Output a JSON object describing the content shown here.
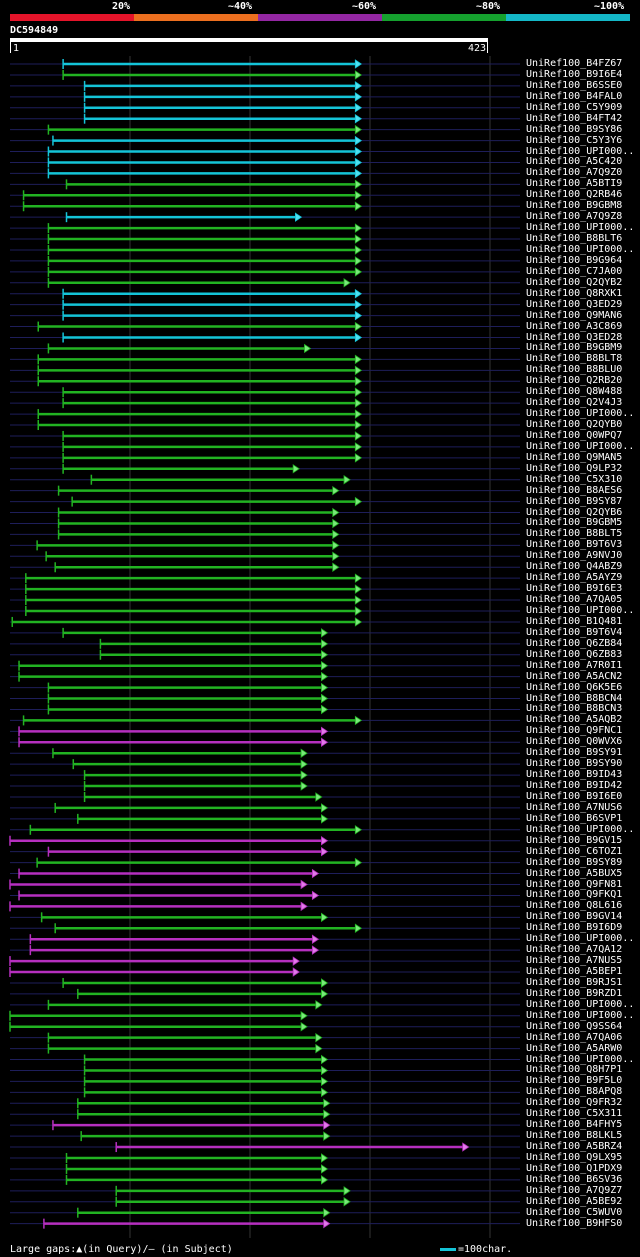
{
  "legend": {
    "labels": [
      "20%",
      "~40%",
      "~60%",
      "~80%",
      "~100%"
    ],
    "colors": [
      "#e5142a",
      "#ec6f1f",
      "#9427a3",
      "#15a12e",
      "#14b7c7"
    ]
  },
  "query": {
    "id": "DC594849",
    "start": "1",
    "end": "423",
    "length": 423
  },
  "colors": {
    "cyan": "#14c4d8",
    "green": "#22b322",
    "magenta": "#b62fbf",
    "cyan_arrow": "#4fe0f0",
    "green_arrow": "#7ae87a",
    "magenta_arrow": "#e07ae8",
    "row_line": "#1e1e5a",
    "grid": "#333333"
  },
  "hits": [
    {
      "label": "UniRef100_B4FZ67",
      "segments": [
        [
          47,
          310,
          "cyan"
        ]
      ]
    },
    {
      "label": "UniRef100_B9I6E4",
      "segments": [
        [
          47,
          310,
          "green"
        ]
      ]
    },
    {
      "label": "UniRef100_B6SSE0",
      "segments": [
        [
          66,
          310,
          "cyan"
        ]
      ]
    },
    {
      "label": "UniRef100_B4FAL0",
      "segments": [
        [
          66,
          310,
          "cyan"
        ]
      ]
    },
    {
      "label": "UniRef100_C5Y909",
      "segments": [
        [
          66,
          310,
          "cyan"
        ]
      ]
    },
    {
      "label": "UniRef100_B4FT42",
      "segments": [
        [
          66,
          310,
          "cyan"
        ]
      ]
    },
    {
      "label": "UniRef100_B9SY86",
      "segments": [
        [
          34,
          310,
          "green"
        ]
      ]
    },
    {
      "label": "UniRef100_C5Y3Y6",
      "segments": [
        [
          38,
          310,
          "cyan"
        ]
      ]
    },
    {
      "label": "UniRef100_UPI000..",
      "segments": [
        [
          34,
          310,
          "cyan"
        ]
      ]
    },
    {
      "label": "UniRef100_A5C420",
      "segments": [
        [
          34,
          310,
          "cyan"
        ]
      ]
    },
    {
      "label": "UniRef100_A7Q9Z0",
      "segments": [
        [
          34,
          310,
          "cyan"
        ]
      ]
    },
    {
      "label": "UniRef100_A5BTI9",
      "segments": [
        [
          50,
          310,
          "green"
        ]
      ]
    },
    {
      "label": "UniRef100_Q2RB46",
      "segments": [
        [
          12,
          310,
          "green"
        ]
      ]
    },
    {
      "label": "UniRef100_B9GBM8",
      "segments": [
        [
          12,
          310,
          "green"
        ]
      ]
    },
    {
      "label": "UniRef100_A7Q9Z8",
      "segments": [
        [
          50,
          257,
          "cyan"
        ]
      ]
    },
    {
      "label": "UniRef100_UPI000..",
      "segments": [
        [
          34,
          310,
          "green"
        ]
      ]
    },
    {
      "label": "UniRef100_B8BLT6",
      "segments": [
        [
          34,
          310,
          "green"
        ]
      ]
    },
    {
      "label": "UniRef100_UPI000..",
      "segments": [
        [
          34,
          310,
          "green"
        ]
      ]
    },
    {
      "label": "UniRef100_B9G964",
      "segments": [
        [
          34,
          310,
          "green"
        ]
      ]
    },
    {
      "label": "UniRef100_C7JA00",
      "segments": [
        [
          34,
          310,
          "green"
        ]
      ]
    },
    {
      "label": "UniRef100_Q2QYB2",
      "segments": [
        [
          34,
          300,
          "green"
        ]
      ]
    },
    {
      "label": "UniRef100_Q8RXK1",
      "segments": [
        [
          47,
          310,
          "cyan"
        ]
      ]
    },
    {
      "label": "UniRef100_Q3ED29",
      "segments": [
        [
          47,
          310,
          "cyan"
        ]
      ]
    },
    {
      "label": "UniRef100_Q9MAN6",
      "segments": [
        [
          47,
          310,
          "cyan"
        ]
      ]
    },
    {
      "label": "UniRef100_A3C869",
      "segments": [
        [
          25,
          310,
          "green"
        ]
      ]
    },
    {
      "label": "UniRef100_Q3ED28",
      "segments": [
        [
          47,
          310,
          "cyan"
        ]
      ]
    },
    {
      "label": "UniRef100_B9GBM9",
      "segments": [
        [
          34,
          265,
          "green"
        ]
      ]
    },
    {
      "label": "UniRef100_B8BLT8",
      "segments": [
        [
          25,
          310,
          "green"
        ]
      ]
    },
    {
      "label": "UniRef100_B8BLU0",
      "segments": [
        [
          25,
          310,
          "green"
        ]
      ]
    },
    {
      "label": "UniRef100_Q2RB20",
      "segments": [
        [
          25,
          310,
          "green"
        ]
      ]
    },
    {
      "label": "UniRef100_Q8W488",
      "segments": [
        [
          47,
          310,
          "green"
        ]
      ]
    },
    {
      "label": "UniRef100_Q2V4J3",
      "segments": [
        [
          47,
          310,
          "green"
        ]
      ]
    },
    {
      "label": "UniRef100_UPI000..",
      "segments": [
        [
          25,
          310,
          "green"
        ]
      ]
    },
    {
      "label": "UniRef100_Q2QYB0",
      "segments": [
        [
          25,
          310,
          "green"
        ]
      ]
    },
    {
      "label": "UniRef100_Q0WPQ7",
      "segments": [
        [
          47,
          310,
          "green"
        ]
      ]
    },
    {
      "label": "UniRef100_UPI000..",
      "segments": [
        [
          47,
          310,
          "green"
        ]
      ]
    },
    {
      "label": "UniRef100_Q9MAN5",
      "segments": [
        [
          47,
          310,
          "green"
        ]
      ]
    },
    {
      "label": "UniRef100_Q9LP32",
      "segments": [
        [
          47,
          255,
          "green"
        ]
      ]
    },
    {
      "label": "UniRef100_C5X310",
      "segments": [
        [
          72,
          300,
          "green"
        ]
      ]
    },
    {
      "label": "UniRef100_B8AES6",
      "segments": [
        [
          43,
          290,
          "green"
        ]
      ]
    },
    {
      "label": "UniRef100_B9SY87",
      "segments": [
        [
          55,
          310,
          "green"
        ]
      ]
    },
    {
      "label": "UniRef100_Q2QYB6",
      "segments": [
        [
          43,
          290,
          "green"
        ]
      ]
    },
    {
      "label": "UniRef100_B9GBM5",
      "segments": [
        [
          43,
          290,
          "green"
        ]
      ]
    },
    {
      "label": "UniRef100_B8BLT5",
      "segments": [
        [
          43,
          290,
          "green"
        ]
      ]
    },
    {
      "label": "UniRef100_B9T6V3",
      "segments": [
        [
          24,
          290,
          "green"
        ]
      ]
    },
    {
      "label": "UniRef100_A9NVJ0",
      "segments": [
        [
          32,
          290,
          "green"
        ]
      ]
    },
    {
      "label": "UniRef100_Q4ABZ9",
      "segments": [
        [
          40,
          290,
          "green"
        ]
      ]
    },
    {
      "label": "UniRef100_A5AYZ9",
      "segments": [
        [
          14,
          310,
          "green"
        ]
      ]
    },
    {
      "label": "UniRef100_B9I6E3",
      "segments": [
        [
          14,
          310,
          "green"
        ]
      ]
    },
    {
      "label": "UniRef100_A7QA05",
      "segments": [
        [
          14,
          310,
          "green"
        ]
      ]
    },
    {
      "label": "UniRef100_UPI000..",
      "segments": [
        [
          14,
          310,
          "green"
        ]
      ]
    },
    {
      "label": "UniRef100_B1Q481",
      "segments": [
        [
          2,
          310,
          "green"
        ]
      ]
    },
    {
      "label": "UniRef100_B9T6V4",
      "segments": [
        [
          47,
          280,
          "green"
        ]
      ]
    },
    {
      "label": "UniRef100_Q6ZB84",
      "segments": [
        [
          80,
          280,
          "green"
        ]
      ]
    },
    {
      "label": "UniRef100_Q6ZB83",
      "segments": [
        [
          80,
          280,
          "green"
        ]
      ]
    },
    {
      "label": "UniRef100_A7R0I1",
      "segments": [
        [
          8,
          280,
          "green"
        ]
      ]
    },
    {
      "label": "UniRef100_A5ACN2",
      "segments": [
        [
          8,
          280,
          "green"
        ]
      ]
    },
    {
      "label": "UniRef100_Q6K5E6",
      "segments": [
        [
          34,
          280,
          "green"
        ]
      ]
    },
    {
      "label": "UniRef100_B8BCN4",
      "segments": [
        [
          34,
          280,
          "green"
        ]
      ]
    },
    {
      "label": "UniRef100_B8BCN3",
      "segments": [
        [
          34,
          280,
          "green"
        ]
      ]
    },
    {
      "label": "UniRef100_A5AQB2",
      "segments": [
        [
          12,
          310,
          "green"
        ]
      ]
    },
    {
      "label": "UniRef100_Q9FNC1",
      "segments": [
        [
          8,
          280,
          "magenta"
        ]
      ]
    },
    {
      "label": "UniRef100_Q0WVX6",
      "segments": [
        [
          8,
          280,
          "magenta"
        ]
      ]
    },
    {
      "label": "UniRef100_B9SY91",
      "segments": [
        [
          38,
          262,
          "green"
        ]
      ]
    },
    {
      "label": "UniRef100_B9SY90",
      "segments": [
        [
          56,
          262,
          "green"
        ]
      ]
    },
    {
      "label": "UniRef100_B9ID43",
      "segments": [
        [
          66,
          262,
          "green"
        ]
      ]
    },
    {
      "label": "UniRef100_B9ID42",
      "segments": [
        [
          66,
          262,
          "green"
        ]
      ]
    },
    {
      "label": "UniRef100_B9I6E0",
      "segments": [
        [
          66,
          275,
          "green"
        ]
      ]
    },
    {
      "label": "UniRef100_A7NUS6",
      "segments": [
        [
          40,
          280,
          "green"
        ]
      ]
    },
    {
      "label": "UniRef100_B6SVP1",
      "segments": [
        [
          60,
          280,
          "green"
        ]
      ]
    },
    {
      "label": "UniRef100_UPI000..",
      "segments": [
        [
          18,
          310,
          "green"
        ]
      ]
    },
    {
      "label": "UniRef100_B9GV15",
      "segments": [
        [
          0,
          280,
          "magenta"
        ]
      ]
    },
    {
      "label": "UniRef100_C6TOZ1",
      "segments": [
        [
          34,
          280,
          "magenta"
        ]
      ]
    },
    {
      "label": "UniRef100_B9SY89",
      "segments": [
        [
          24,
          310,
          "green"
        ]
      ]
    },
    {
      "label": "UniRef100_A5BUX5",
      "segments": [
        [
          8,
          272,
          "magenta"
        ]
      ]
    },
    {
      "label": "UniRef100_Q9FN81",
      "segments": [
        [
          0,
          262,
          "magenta"
        ]
      ]
    },
    {
      "label": "UniRef100_Q9FKQ1",
      "segments": [
        [
          8,
          272,
          "magenta"
        ]
      ]
    },
    {
      "label": "UniRef100_Q8L616",
      "segments": [
        [
          0,
          262,
          "magenta"
        ]
      ]
    },
    {
      "label": "UniRef100_B9GV14",
      "segments": [
        [
          28,
          280,
          "green"
        ]
      ]
    },
    {
      "label": "UniRef100_B9I6D9",
      "segments": [
        [
          40,
          310,
          "green"
        ]
      ]
    },
    {
      "label": "UniRef100_UPI000..",
      "segments": [
        [
          18,
          272,
          "magenta"
        ]
      ]
    },
    {
      "label": "UniRef100_A7QA12",
      "segments": [
        [
          18,
          272,
          "magenta"
        ]
      ]
    },
    {
      "label": "UniRef100_A7NUS5",
      "segments": [
        [
          0,
          255,
          "magenta"
        ]
      ]
    },
    {
      "label": "UniRef100_A5BEP1",
      "segments": [
        [
          0,
          255,
          "magenta"
        ]
      ]
    },
    {
      "label": "UniRef100_B9RJS1",
      "segments": [
        [
          47,
          280,
          "green"
        ]
      ]
    },
    {
      "label": "UniRef100_B9RZD1",
      "segments": [
        [
          60,
          280,
          "green"
        ]
      ]
    },
    {
      "label": "UniRef100_UPI000..",
      "segments": [
        [
          34,
          275,
          "green"
        ]
      ]
    },
    {
      "label": "UniRef100_UPI000..",
      "segments": [
        [
          0,
          262,
          "green"
        ]
      ]
    },
    {
      "label": "UniRef100_Q9SS64",
      "segments": [
        [
          0,
          262,
          "green"
        ]
      ]
    },
    {
      "label": "UniRef100_A7QA06",
      "segments": [
        [
          34,
          275,
          "green"
        ]
      ]
    },
    {
      "label": "UniRef100_A5ARW0",
      "segments": [
        [
          34,
          275,
          "green"
        ]
      ]
    },
    {
      "label": "UniRef100_UPI000..",
      "segments": [
        [
          66,
          280,
          "green"
        ]
      ]
    },
    {
      "label": "UniRef100_Q8H7P1",
      "segments": [
        [
          66,
          280,
          "green"
        ]
      ]
    },
    {
      "label": "UniRef100_B9F5L0",
      "segments": [
        [
          66,
          280,
          "green"
        ]
      ]
    },
    {
      "label": "UniRef100_B8APQ8",
      "segments": [
        [
          66,
          280,
          "green"
        ]
      ]
    },
    {
      "label": "UniRef100_Q9FR32",
      "segments": [
        [
          60,
          282,
          "green"
        ]
      ]
    },
    {
      "label": "UniRef100_C5X311",
      "segments": [
        [
          60,
          282,
          "green"
        ]
      ]
    },
    {
      "label": "UniRef100_B4FHY5",
      "segments": [
        [
          38,
          282,
          "magenta"
        ]
      ]
    },
    {
      "label": "UniRef100_B8LKL5",
      "segments": [
        [
          63,
          282,
          "green"
        ]
      ]
    },
    {
      "label": "UniRef100_A5BRZ4",
      "segments": [
        [
          94,
          405,
          "magenta"
        ]
      ]
    },
    {
      "label": "UniRef100_Q9LX95",
      "segments": [
        [
          50,
          280,
          "green"
        ]
      ]
    },
    {
      "label": "UniRef100_Q1PDX9",
      "segments": [
        [
          50,
          280,
          "green"
        ]
      ]
    },
    {
      "label": "UniRef100_B6SV36",
      "segments": [
        [
          50,
          280,
          "green"
        ]
      ]
    },
    {
      "label": "UniRef100_A7Q9Z7",
      "segments": [
        [
          94,
          300,
          "green"
        ]
      ]
    },
    {
      "label": "UniRef100_A5BE92",
      "segments": [
        [
          94,
          300,
          "green"
        ]
      ]
    },
    {
      "label": "UniRef100_C5WUV0",
      "segments": [
        [
          60,
          282,
          "green"
        ]
      ]
    },
    {
      "label": "UniRef100_B9HFS0",
      "segments": [
        [
          30,
          282,
          "magenta"
        ]
      ]
    }
  ],
  "footer": {
    "gaps_text": "Large gaps:▲(in Query)/— (in Subject)",
    "scale_text": "=100char."
  }
}
